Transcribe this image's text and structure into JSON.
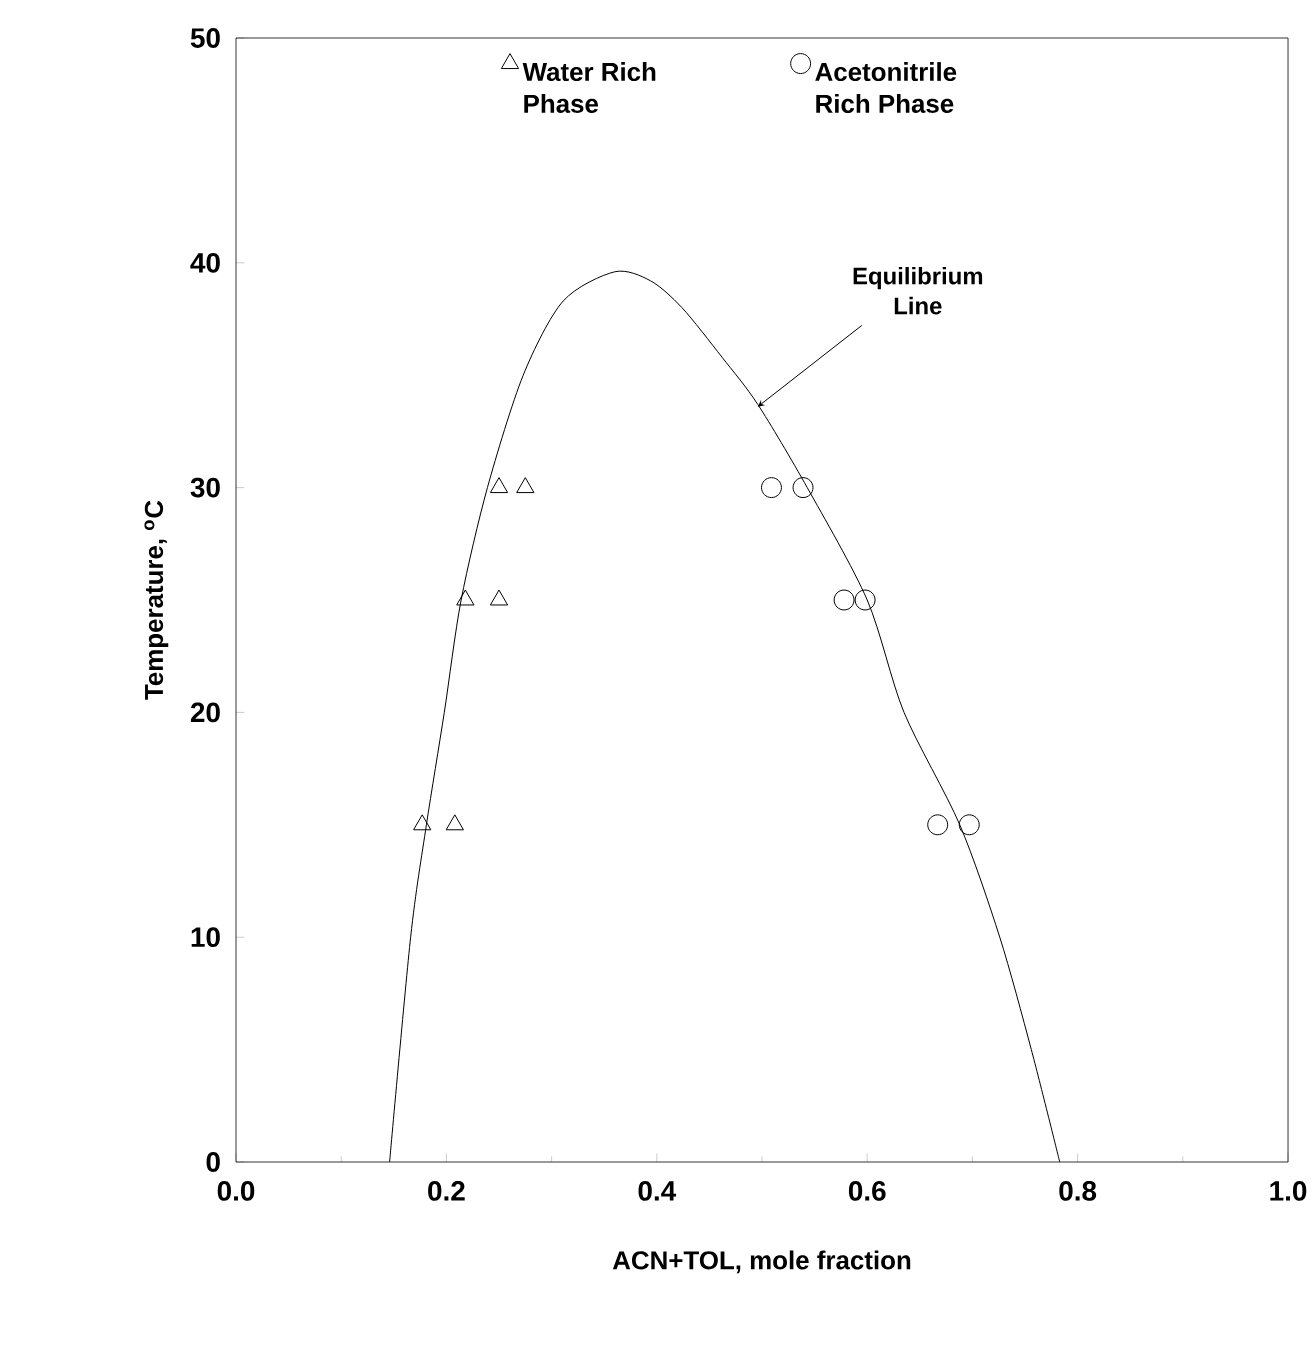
{
  "chart_data": {
    "type": "scatter",
    "xlabel": "ACN+TOL, mole fraction",
    "ylabel": "Temperature, $^{o}$C",
    "xlim": [
      0,
      1
    ],
    "ylim": [
      0,
      50
    ],
    "xticks": [
      {
        "value": 0,
        "label": "0.0"
      },
      {
        "value": 0.2,
        "label": "0.2"
      },
      {
        "value": 0.4,
        "label": "0.4"
      },
      {
        "value": 0.6,
        "label": "0.6"
      },
      {
        "value": 0.8,
        "label": "0.8"
      },
      {
        "value": 1,
        "label": "1.0"
      }
    ],
    "yticks": [
      0,
      10,
      20,
      30,
      40,
      50
    ],
    "legend": "top",
    "grid": false,
    "annotations": [
      {
        "text": "Equilibrium Line",
        "x": 0.496,
        "y": 33.6
      }
    ],
    "series": [
      {
        "name": "Water Rich Phase",
        "type": "scatter",
        "marker": "triangle",
        "color": "#000000",
        "x": [
          0.177,
          0.208,
          0.218,
          0.25,
          0.25,
          0.275
        ],
        "values": [
          15,
          15,
          25,
          25,
          30,
          30
        ]
      },
      {
        "name": "Acetonitrile Rich Phase",
        "type": "scatter",
        "marker": "circle",
        "color": "#000000",
        "x": [
          0.509,
          0.539,
          0.578,
          0.598,
          0.667,
          0.697
        ],
        "values": [
          30,
          30,
          25,
          25,
          15,
          15
        ]
      },
      {
        "type": "line",
        "marker": "none",
        "line_style": "solid",
        "color": "#000000",
        "x": [
          0.146,
          0.166,
          0.181,
          0.198,
          0.214,
          0.239,
          0.273,
          0.311,
          0.36,
          0.394,
          0.424,
          0.462,
          0.496,
          0.543,
          0.6,
          0.635,
          0.688,
          0.726,
          0.756,
          0.783
        ],
        "values": [
          0,
          10,
          15,
          20,
          25,
          30,
          35,
          38.3,
          39.6,
          39.2,
          38,
          35.8,
          33.7,
          30,
          25,
          20,
          15,
          10,
          5,
          0
        ]
      }
    ]
  }
}
